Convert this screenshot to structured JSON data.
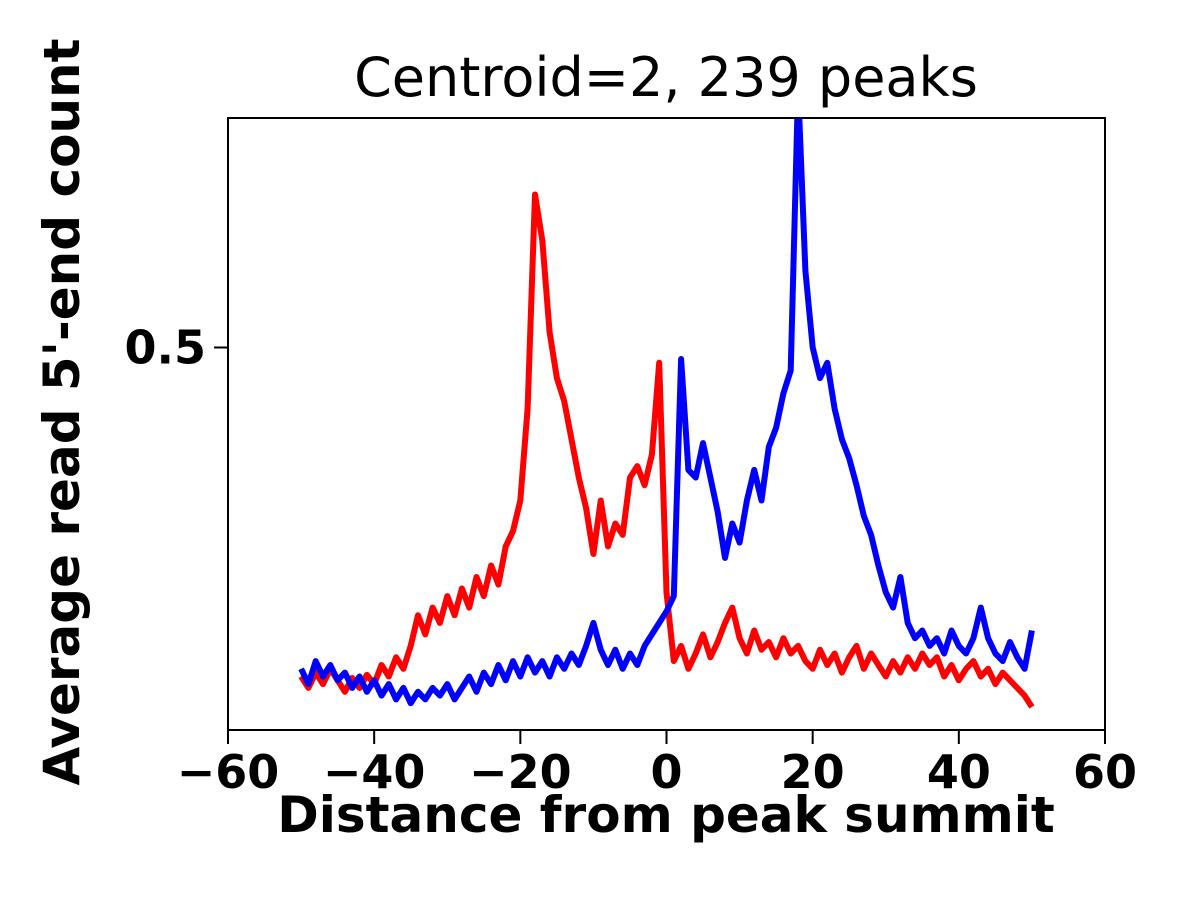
{
  "figure": {
    "background": "#ffffff"
  },
  "chart_data": {
    "type": "line",
    "title": "Centroid=2, 239 peaks",
    "xlabel": "Distance from peak summit",
    "ylabel": "Average read 5'-end count",
    "xlim": [
      -60,
      60
    ],
    "ylim": [
      0,
      0.8
    ],
    "grid": false,
    "legend": null,
    "axis_color": "#000000",
    "xticks": {
      "values": [
        -60,
        -40,
        -20,
        0,
        20,
        40,
        60
      ],
      "labels": [
        "−60",
        "−40",
        "−20",
        "0",
        "20",
        "40",
        "60"
      ]
    },
    "yticks": {
      "values": [
        0.5
      ],
      "labels": [
        "0.5"
      ]
    },
    "x": [
      -50,
      -49,
      -48,
      -47,
      -46,
      -45,
      -44,
      -43,
      -42,
      -41,
      -40,
      -39,
      -38,
      -37,
      -36,
      -35,
      -34,
      -33,
      -32,
      -31,
      -30,
      -29,
      -28,
      -27,
      -26,
      -25,
      -24,
      -23,
      -22,
      -21,
      -20,
      -19,
      -18,
      -17,
      -16,
      -15,
      -14,
      -13,
      -12,
      -11,
      -10,
      -9,
      -8,
      -7,
      -6,
      -5,
      -4,
      -3,
      -2,
      -1,
      0,
      1,
      2,
      3,
      4,
      5,
      6,
      7,
      8,
      9,
      10,
      11,
      12,
      13,
      14,
      15,
      16,
      17,
      18,
      19,
      20,
      21,
      22,
      23,
      24,
      25,
      26,
      27,
      28,
      29,
      30,
      31,
      32,
      33,
      34,
      35,
      36,
      37,
      38,
      39,
      40,
      41,
      42,
      43,
      44,
      45,
      46,
      47,
      48,
      49,
      50
    ],
    "series": [
      {
        "name": "red-series",
        "color": "#ff0000",
        "values": [
          0.07,
          0.055,
          0.075,
          0.06,
          0.08,
          0.065,
          0.05,
          0.068,
          0.055,
          0.072,
          0.06,
          0.085,
          0.07,
          0.095,
          0.08,
          0.11,
          0.15,
          0.125,
          0.16,
          0.14,
          0.175,
          0.15,
          0.185,
          0.16,
          0.2,
          0.175,
          0.215,
          0.19,
          0.24,
          0.26,
          0.3,
          0.42,
          0.7,
          0.64,
          0.52,
          0.46,
          0.43,
          0.38,
          0.33,
          0.29,
          0.23,
          0.3,
          0.24,
          0.27,
          0.255,
          0.33,
          0.345,
          0.32,
          0.36,
          0.48,
          0.18,
          0.09,
          0.11,
          0.08,
          0.1,
          0.125,
          0.095,
          0.115,
          0.14,
          0.16,
          0.12,
          0.1,
          0.13,
          0.105,
          0.115,
          0.095,
          0.12,
          0.1,
          0.11,
          0.09,
          0.08,
          0.105,
          0.085,
          0.1,
          0.075,
          0.095,
          0.11,
          0.08,
          0.1,
          0.085,
          0.07,
          0.09,
          0.075,
          0.095,
          0.08,
          0.1,
          0.085,
          0.095,
          0.07,
          0.085,
          0.065,
          0.08,
          0.09,
          0.07,
          0.08,
          0.06,
          0.075,
          0.065,
          0.055,
          0.045,
          0.03
        ]
      },
      {
        "name": "blue-series",
        "color": "#0000ff",
        "values": [
          0.08,
          0.06,
          0.09,
          0.07,
          0.085,
          0.065,
          0.075,
          0.055,
          0.07,
          0.05,
          0.065,
          0.045,
          0.06,
          0.04,
          0.055,
          0.035,
          0.05,
          0.04,
          0.055,
          0.045,
          0.06,
          0.04,
          0.055,
          0.07,
          0.05,
          0.075,
          0.06,
          0.085,
          0.065,
          0.09,
          0.07,
          0.095,
          0.075,
          0.09,
          0.07,
          0.095,
          0.08,
          0.1,
          0.085,
          0.11,
          0.14,
          0.105,
          0.085,
          0.105,
          0.08,
          0.1,
          0.085,
          0.11,
          0.125,
          0.14,
          0.155,
          0.175,
          0.485,
          0.34,
          0.33,
          0.375,
          0.33,
          0.285,
          0.225,
          0.27,
          0.245,
          0.3,
          0.34,
          0.3,
          0.37,
          0.395,
          0.44,
          0.47,
          0.84,
          0.6,
          0.5,
          0.46,
          0.48,
          0.42,
          0.38,
          0.355,
          0.32,
          0.28,
          0.255,
          0.215,
          0.18,
          0.16,
          0.2,
          0.14,
          0.12,
          0.13,
          0.11,
          0.12,
          0.1,
          0.13,
          0.11,
          0.1,
          0.12,
          0.16,
          0.12,
          0.1,
          0.09,
          0.115,
          0.095,
          0.08,
          0.13
        ]
      }
    ]
  }
}
